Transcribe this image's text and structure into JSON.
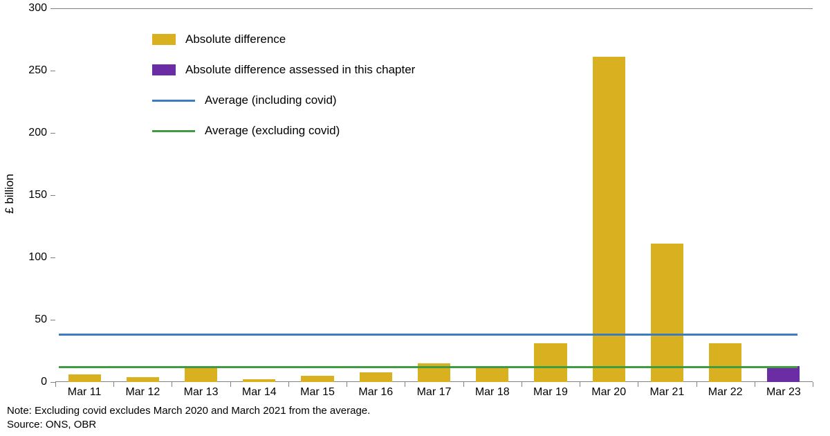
{
  "chart": {
    "type": "bar",
    "ylabel": "£ billion",
    "ylim": [
      0,
      300
    ],
    "ytick_step": 50,
    "yticks": [
      0,
      50,
      100,
      150,
      200,
      250,
      300
    ],
    "categories": [
      "Mar 11",
      "Mar 12",
      "Mar 13",
      "Mar 14",
      "Mar 15",
      "Mar 16",
      "Mar 17",
      "Mar 18",
      "Mar 19",
      "Mar 20",
      "Mar 21",
      "Mar 22",
      "Mar 23"
    ],
    "series": {
      "absolute_diff": {
        "label": "Absolute difference",
        "color": "#d8b020",
        "values": [
          6,
          4,
          11,
          2,
          5,
          8,
          15,
          11,
          31,
          261,
          111,
          31,
          null
        ]
      },
      "absolute_diff_chapter": {
        "label": "Absolute difference assessed in this chapter",
        "color": "#6b2da3",
        "values": [
          null,
          null,
          null,
          null,
          null,
          null,
          null,
          null,
          null,
          null,
          null,
          null,
          13
        ]
      }
    },
    "lines": {
      "avg_including_covid": {
        "label": "Average (including covid)",
        "color": "#3b7cc0",
        "value": 38,
        "width": 3
      },
      "avg_excluding_covid": {
        "label": "Average (excluding covid)",
        "color": "#3f9b3f",
        "value": 12,
        "width": 3
      }
    },
    "bar_width": 0.56,
    "background_color": "#ffffff",
    "grid_color": "#808080",
    "label_fontsize": 16
  },
  "legend": {
    "items": [
      {
        "kind": "box",
        "ref": "series.absolute_diff"
      },
      {
        "kind": "box",
        "ref": "series.absolute_diff_chapter"
      },
      {
        "kind": "line",
        "ref": "lines.avg_including_covid"
      },
      {
        "kind": "line",
        "ref": "lines.avg_excluding_covid"
      }
    ]
  },
  "notes": {
    "note": "Note: Excluding covid excludes March 2020 and March 2021 from the average.",
    "source": "Source: ONS, OBR"
  }
}
